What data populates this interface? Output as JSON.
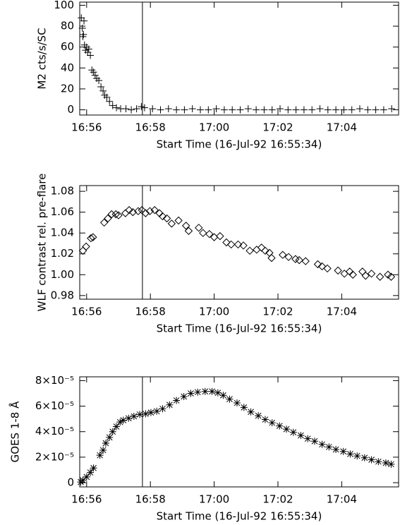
{
  "chart_data": [
    {
      "type": "scatter",
      "marker": "plus",
      "y_label": "M2 cts/s/SC",
      "x_label": "Start Time (16-Jul-92 16:55:34)",
      "marker_x": 131,
      "x": [
        16,
        18,
        19,
        20,
        21,
        22,
        24,
        26,
        28,
        30,
        33,
        36,
        39,
        42,
        45,
        49,
        53,
        57,
        60,
        64,
        69,
        75,
        82,
        90,
        100,
        110,
        120,
        129,
        135,
        150,
        165,
        180,
        195,
        210,
        225,
        240,
        255,
        270,
        285,
        300,
        315,
        330,
        345,
        360,
        375,
        390,
        405,
        420,
        435,
        450,
        465,
        480,
        495,
        510,
        525,
        540,
        555,
        570,
        585,
        600
      ],
      "values": [
        88,
        78,
        70,
        72,
        85,
        62,
        57,
        60,
        55,
        58,
        52,
        38,
        36,
        33,
        30,
        28,
        22,
        18,
        14,
        12,
        8,
        4,
        2,
        1,
        1,
        0,
        1,
        3,
        2,
        1,
        0,
        1,
        0,
        0,
        1,
        0,
        0,
        1,
        0,
        0,
        0,
        1,
        0,
        0,
        0,
        1,
        0,
        0,
        0,
        0,
        1,
        0,
        0,
        0,
        0,
        1,
        0,
        0,
        0,
        1
      ],
      "xlim": [
        13,
        613
      ],
      "xticks": [
        {
          "value": 26,
          "label": "16:56"
        },
        {
          "value": 146,
          "label": "16:58"
        },
        {
          "value": 266,
          "label": "17:00"
        },
        {
          "value": 386,
          "label": "17:02"
        },
        {
          "value": 506,
          "label": "17:04"
        }
      ],
      "ylim": [
        -5,
        103
      ],
      "yticks": [
        0,
        20,
        40,
        60,
        80,
        100
      ]
    },
    {
      "type": "scatter",
      "marker": "diamond",
      "y_label": "WLF contrast rel. pre-flare",
      "x_label": "Start Time (16-Jul-92 16:55:34)",
      "marker_x": 131,
      "x": [
        19,
        25,
        34,
        38,
        59,
        66,
        73,
        81,
        86,
        99,
        106,
        113,
        123,
        130,
        137,
        145,
        154,
        163,
        169,
        177,
        186,
        199,
        213,
        218,
        237,
        245,
        257,
        266,
        277,
        289,
        298,
        311,
        321,
        333,
        346,
        355,
        362,
        370,
        374,
        395,
        406,
        419,
        426,
        438,
        461,
        469,
        479,
        499,
        511,
        521,
        527,
        545,
        551,
        562,
        578,
        593,
        599
      ],
      "values": [
        1.023,
        1.027,
        1.035,
        1.036,
        1.05,
        1.054,
        1.058,
        1.058,
        1.057,
        1.059,
        1.062,
        1.06,
        1.061,
        1.062,
        1.059,
        1.061,
        1.062,
        1.059,
        1.056,
        1.054,
        1.049,
        1.052,
        1.047,
        1.042,
        1.045,
        1.04,
        1.039,
        1.036,
        1.037,
        1.031,
        1.029,
        1.029,
        1.028,
        1.023,
        1.024,
        1.026,
        1.023,
        1.021,
        1.016,
        1.019,
        1.017,
        1.015,
        1.014,
        1.013,
        1.01,
        1.008,
        1.006,
        1.004,
        1.001,
        1.003,
        1.0,
        1.003,
        0.999,
        1.001,
        0.998,
        1.0,
        0.998
      ],
      "xlim": [
        13,
        613
      ],
      "xticks": [
        {
          "value": 26,
          "label": "16:56"
        },
        {
          "value": 146,
          "label": "16:58"
        },
        {
          "value": 266,
          "label": "17:00"
        },
        {
          "value": 386,
          "label": "17:02"
        },
        {
          "value": 506,
          "label": "17:04"
        }
      ],
      "ylim": [
        0.9765,
        1.0855
      ],
      "yticks": [
        0.98,
        {
          "value": 1,
          "label": "1.00"
        },
        1.02,
        1.04,
        1.06,
        1.08
      ]
    },
    {
      "type": "scatter",
      "marker": "asterisk",
      "y_label": "GOES 1-8 Å",
      "x_label": "Start Time (16-Jul-92 16:55:34)",
      "marker_x": 131,
      "x": [
        15,
        19,
        26,
        33,
        39,
        51,
        57,
        62,
        69,
        75,
        82,
        89,
        95,
        105,
        115,
        126,
        137,
        147,
        158,
        169,
        182,
        195,
        209,
        222,
        235,
        249,
        262,
        273,
        283,
        295,
        309,
        322,
        335,
        349,
        362,
        375,
        389,
        402,
        415,
        429,
        442,
        455,
        469,
        482,
        495,
        509,
        522,
        535,
        549,
        562,
        575,
        589,
        599
      ],
      "values": [
        5e-07,
        2e-06,
        4.5e-06,
        8e-06,
        1.15e-05,
        2.15e-05,
        2.55e-05,
        3.1e-05,
        3.55e-05,
        4e-05,
        4.4e-05,
        4.75e-05,
        4.9e-05,
        5.05e-05,
        5.2e-05,
        5.35e-05,
        5.4e-05,
        5.5e-05,
        5.6e-05,
        5.8e-05,
        6.1e-05,
        6.45e-05,
        6.75e-05,
        7e-05,
        7.1e-05,
        7.15e-05,
        7.15e-05,
        7.05e-05,
        6.85e-05,
        6.55e-05,
        6.25e-05,
        5.9e-05,
        5.55e-05,
        5.25e-05,
        4.95e-05,
        4.7e-05,
        4.45e-05,
        4.2e-05,
        3.95e-05,
        3.7e-05,
        3.45e-05,
        3.25e-05,
        3e-05,
        2.8e-05,
        2.6e-05,
        2.45e-05,
        2.25e-05,
        2.1e-05,
        1.95e-05,
        1.8e-05,
        1.65e-05,
        1.55e-05,
        1.45e-05
      ],
      "xlim": [
        13,
        613
      ],
      "xticks": [
        {
          "value": 26,
          "label": "16:56"
        },
        {
          "value": 146,
          "label": "16:58"
        },
        {
          "value": 266,
          "label": "17:00"
        },
        {
          "value": 386,
          "label": "17:02"
        },
        {
          "value": 506,
          "label": "17:04"
        }
      ],
      "ylim": [
        -3.3e-06,
        8.3e-05
      ],
      "yticks": [
        0,
        {
          "value": 2e-05,
          "label": "2×10⁻⁵"
        },
        {
          "value": 4e-05,
          "label": "4×10⁻⁵"
        },
        {
          "value": 6e-05,
          "label": "6×10⁻⁵"
        },
        {
          "value": 8e-05,
          "label": "8×10⁻⁵"
        }
      ]
    }
  ]
}
